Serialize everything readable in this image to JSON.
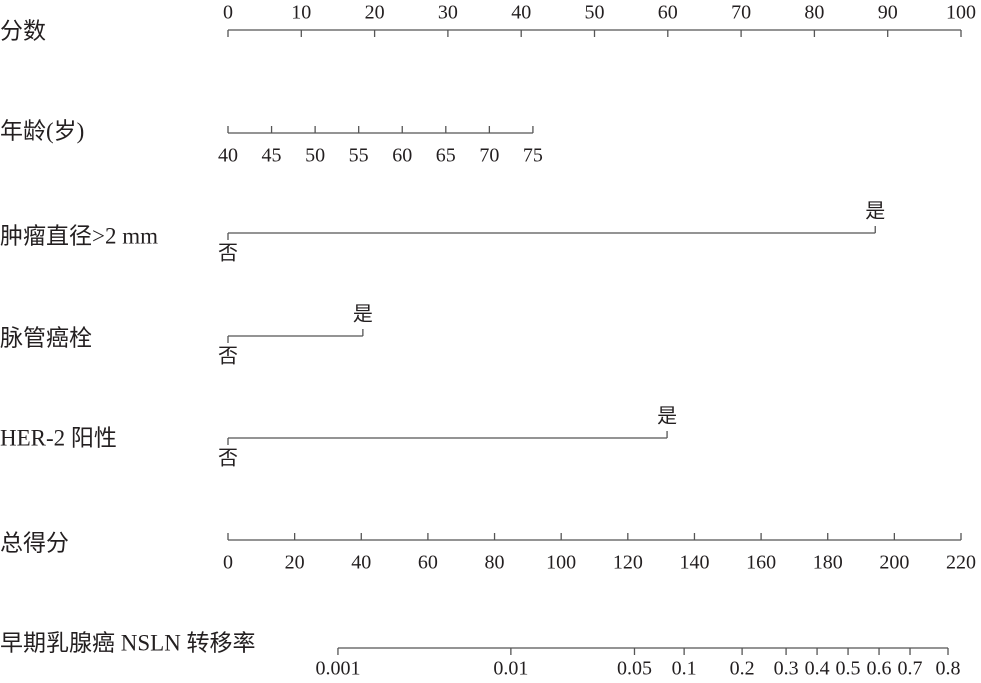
{
  "chart_data": {
    "type": "nomogram",
    "rows": [
      {
        "label": "分数",
        "kind": "scale",
        "xlim": [
          0,
          100
        ],
        "xticks": [
          0,
          10,
          20,
          30,
          40,
          50,
          60,
          70,
          80,
          90,
          100
        ],
        "points_range": [
          0,
          100
        ],
        "tick_side": "top"
      },
      {
        "label": "年龄(岁)",
        "kind": "scale",
        "xlim": [
          40,
          75
        ],
        "xticks": [
          40,
          45,
          50,
          55,
          60,
          65,
          70,
          75
        ],
        "points_range": [
          0,
          41.6
        ],
        "tick_side": "bottom"
      },
      {
        "label": "肿瘤直径>2 mm",
        "kind": "categorical",
        "categories": [
          "否",
          "是"
        ],
        "points": [
          0,
          88.3
        ]
      },
      {
        "label": "脉管癌栓",
        "kind": "categorical",
        "categories": [
          "否",
          "是"
        ],
        "points": [
          0,
          18.4
        ]
      },
      {
        "label": "HER-2 阳性",
        "kind": "categorical",
        "categories": [
          "否",
          "是"
        ],
        "points": [
          0,
          59.9
        ]
      },
      {
        "label": "总得分",
        "kind": "total",
        "xlim": [
          0,
          220
        ],
        "xticks": [
          0,
          20,
          40,
          60,
          80,
          100,
          120,
          140,
          160,
          180,
          200,
          220
        ],
        "tick_side": "bottom"
      },
      {
        "label": "早期乳腺癌 NSLN 转移率",
        "kind": "probability",
        "xticks": [
          0.001,
          0.01,
          0.05,
          0.1,
          0.2,
          0.3,
          0.4,
          0.5,
          0.6,
          0.7,
          0.8
        ],
        "tick_total_points": [
          33.0,
          84.9,
          122.0,
          136.9,
          154.3,
          167.5,
          176.8,
          186.1,
          195.4,
          204.7,
          216.1
        ]
      }
    ]
  }
}
